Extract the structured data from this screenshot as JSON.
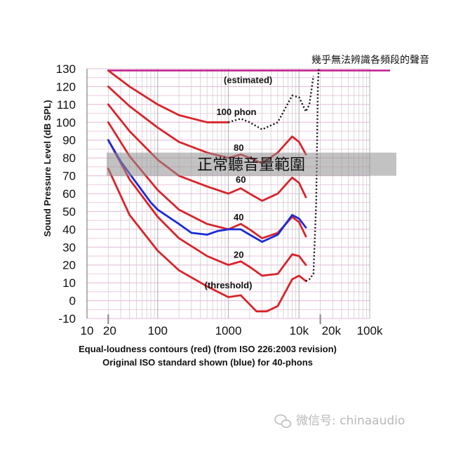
{
  "chart_data": {
    "type": "line",
    "xlabel": "",
    "ylabel": "Sound Pressure Level (dB SPL)",
    "xscale": "log",
    "xlim": [
      10,
      100000
    ],
    "ylim": [
      -10,
      130
    ],
    "x_tick_labels": [
      "10",
      "100",
      "1000",
      "10k",
      "100k"
    ],
    "x_marker_labels": [
      "20",
      "20k"
    ],
    "y_ticks": [
      "130",
      "120",
      "110",
      "100",
      "90",
      "80",
      "70",
      "60",
      "50",
      "40",
      "30",
      "20",
      "10",
      "0",
      "-10"
    ],
    "grid": true,
    "top_limit_line": {
      "y": 129,
      "color": "#c01a8c"
    },
    "top_limit_label": "幾乎無法辨識各頻段的聲音",
    "normal_range_band": {
      "y_range": [
        70,
        83
      ],
      "label": "正常聽音量範圍"
    },
    "caption_lines": [
      "Equal-loudness contours (red) (from ISO 226:2003 revision)",
      "Original ISO standard shown (blue) for 40-phons"
    ],
    "series": [
      {
        "name": "(threshold)",
        "color": "#d9232a",
        "points": [
          [
            20,
            74
          ],
          [
            40,
            48
          ],
          [
            100,
            28
          ],
          [
            200,
            17
          ],
          [
            500,
            8
          ],
          [
            1000,
            2
          ],
          [
            1500,
            3
          ],
          [
            2500,
            -6
          ],
          [
            3500,
            -6
          ],
          [
            5000,
            -3
          ],
          [
            8000,
            12
          ],
          [
            10000,
            14
          ],
          [
            12500,
            11
          ]
        ],
        "dotted_extension": [
          [
            12500,
            11
          ],
          [
            14000,
            12
          ],
          [
            16000,
            15
          ],
          [
            17500,
            55
          ],
          [
            18500,
            122
          ],
          [
            19000,
            130
          ]
        ]
      },
      {
        "name": "20",
        "color": "#d9232a",
        "points": [
          [
            20,
            90
          ],
          [
            40,
            68
          ],
          [
            100,
            47
          ],
          [
            200,
            35
          ],
          [
            500,
            25
          ],
          [
            1000,
            20
          ],
          [
            1500,
            22
          ],
          [
            2000,
            19
          ],
          [
            3000,
            14
          ],
          [
            5000,
            15
          ],
          [
            8000,
            26
          ],
          [
            10000,
            25
          ],
          [
            12500,
            20
          ]
        ]
      },
      {
        "name": "40",
        "color": "#d9232a",
        "points": [
          [
            20,
            100
          ],
          [
            40,
            81
          ],
          [
            100,
            62
          ],
          [
            200,
            51
          ],
          [
            500,
            43
          ],
          [
            1000,
            40
          ],
          [
            1500,
            43
          ],
          [
            2000,
            40
          ],
          [
            3000,
            35
          ],
          [
            5000,
            38
          ],
          [
            8000,
            47
          ],
          [
            10000,
            44
          ],
          [
            12500,
            36
          ]
        ]
      },
      {
        "name": "60",
        "color": "#d9232a",
        "points": [
          [
            20,
            110
          ],
          [
            40,
            95
          ],
          [
            100,
            79
          ],
          [
            200,
            70
          ],
          [
            500,
            64
          ],
          [
            1000,
            60
          ],
          [
            1500,
            63
          ],
          [
            2000,
            60
          ],
          [
            3000,
            56
          ],
          [
            5000,
            60
          ],
          [
            8000,
            69
          ],
          [
            10000,
            66
          ],
          [
            12500,
            58
          ]
        ]
      },
      {
        "name": "80",
        "color": "#d9232a",
        "points": [
          [
            20,
            120
          ],
          [
            40,
            109
          ],
          [
            100,
            97
          ],
          [
            200,
            89
          ],
          [
            500,
            83
          ],
          [
            1000,
            80
          ],
          [
            1500,
            82
          ],
          [
            2000,
            80
          ],
          [
            3000,
            77
          ],
          [
            5000,
            83
          ],
          [
            8000,
            92
          ],
          [
            10000,
            89
          ],
          [
            12500,
            82
          ]
        ]
      },
      {
        "name": "100 phon",
        "color": "#d9232a",
        "points": [
          [
            20,
            129
          ],
          [
            40,
            120
          ],
          [
            100,
            110
          ],
          [
            200,
            104
          ],
          [
            500,
            100
          ],
          [
            1000,
            100
          ]
        ],
        "dotted_extension": [
          [
            1000,
            100
          ],
          [
            1500,
            102
          ],
          [
            2000,
            100
          ],
          [
            3000,
            96
          ],
          [
            5000,
            100
          ],
          [
            8000,
            115
          ],
          [
            10000,
            114
          ],
          [
            12500,
            106
          ],
          [
            14000,
            110
          ],
          [
            16000,
            126
          ]
        ]
      },
      {
        "name": "40-phons (original ISO)",
        "color": "#1b2bd6",
        "points": [
          [
            20,
            90
          ],
          [
            30,
            78
          ],
          [
            50,
            66
          ],
          [
            80,
            55
          ],
          [
            100,
            51
          ],
          [
            200,
            43
          ],
          [
            300,
            38
          ],
          [
            500,
            37
          ],
          [
            700,
            39
          ],
          [
            1000,
            40
          ],
          [
            1500,
            40
          ],
          [
            2000,
            37
          ],
          [
            3000,
            33
          ],
          [
            5000,
            37
          ],
          [
            8000,
            48
          ],
          [
            10000,
            46
          ],
          [
            12500,
            41
          ]
        ]
      }
    ],
    "annotations": [
      {
        "text": "(estimated)",
        "x": 1900,
        "y": 122
      },
      {
        "text": "100 phon",
        "x": 1300,
        "y": 104
      },
      {
        "text": "80",
        "x": 1400,
        "y": 84
      },
      {
        "text": "60",
        "x": 1500,
        "y": 66
      },
      {
        "text": "40",
        "x": 1400,
        "y": 45
      },
      {
        "text": "20",
        "x": 1400,
        "y": 24
      },
      {
        "text": "(threshold)",
        "x": 1000,
        "y": 7
      }
    ]
  },
  "watermark": {
    "label": "微信号: chinaaudio"
  }
}
